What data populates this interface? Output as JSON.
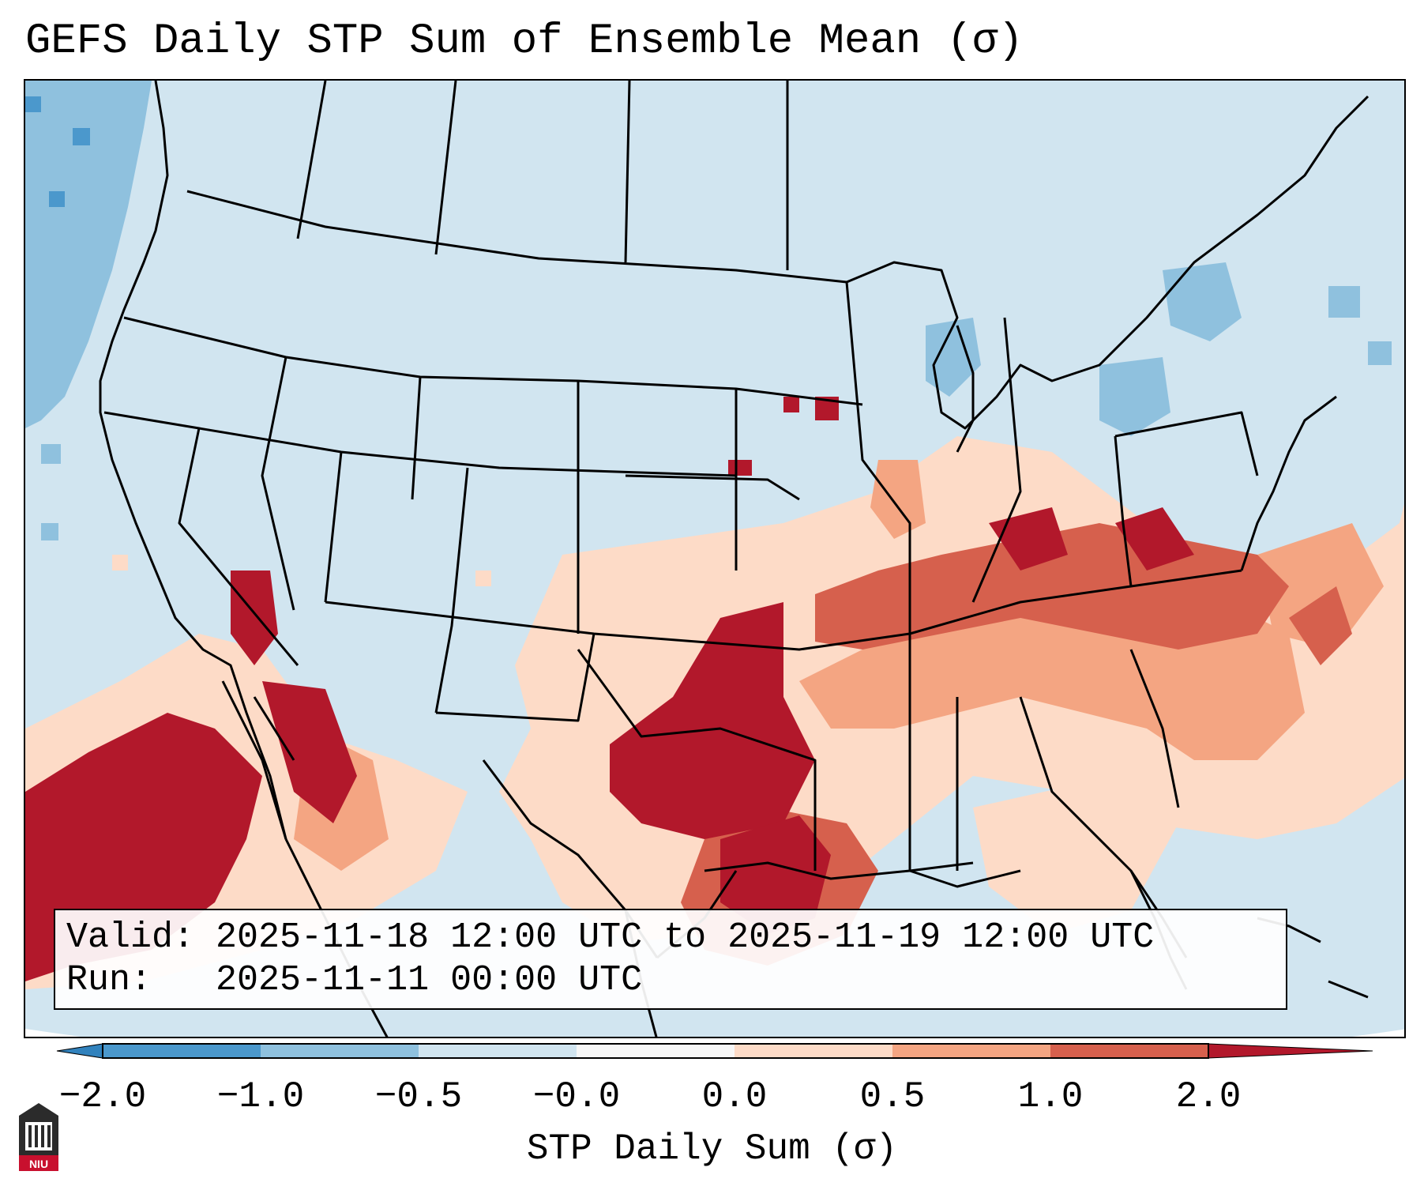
{
  "title": "GEFS Daily STP Sum of Ensemble Mean (σ)",
  "info": {
    "valid_line": "Valid: 2025-11-18 12:00 UTC to 2025-11-19 12:00 UTC",
    "run_line": "Run:   2025-11-11 00:00 UTC"
  },
  "colorbar": {
    "label": "STP Daily Sum (σ)",
    "ticks": [
      "−2.0",
      "−1.0",
      "−0.5",
      "−0.0",
      "0.0",
      "0.5",
      "1.0",
      "2.0"
    ],
    "bins": [
      {
        "range": "<-2.0",
        "color": "#3182bd"
      },
      {
        "range": "-2.0 to -1.0",
        "color": "#4b98cc"
      },
      {
        "range": "-1.0 to -0.5",
        "color": "#8fc1de"
      },
      {
        "range": "-0.5 to -0.0",
        "color": "#d1e5f0"
      },
      {
        "range": "-0.0 to 0.0",
        "color": "#f7f7f7"
      },
      {
        "range": "0.0 to 0.5",
        "color": "#fddbc7"
      },
      {
        "range": "0.5 to 1.0",
        "color": "#f4a582"
      },
      {
        "range": "1.0 to 2.0",
        "color": "#d6604d"
      },
      {
        "range": ">2.0",
        "color": "#b2182b"
      }
    ]
  },
  "logo": {
    "text": "NIU",
    "name": "Northern Illinois University"
  },
  "colors": {
    "background_anomaly": "#d1e5f0",
    "coast_lines": "#000000"
  }
}
